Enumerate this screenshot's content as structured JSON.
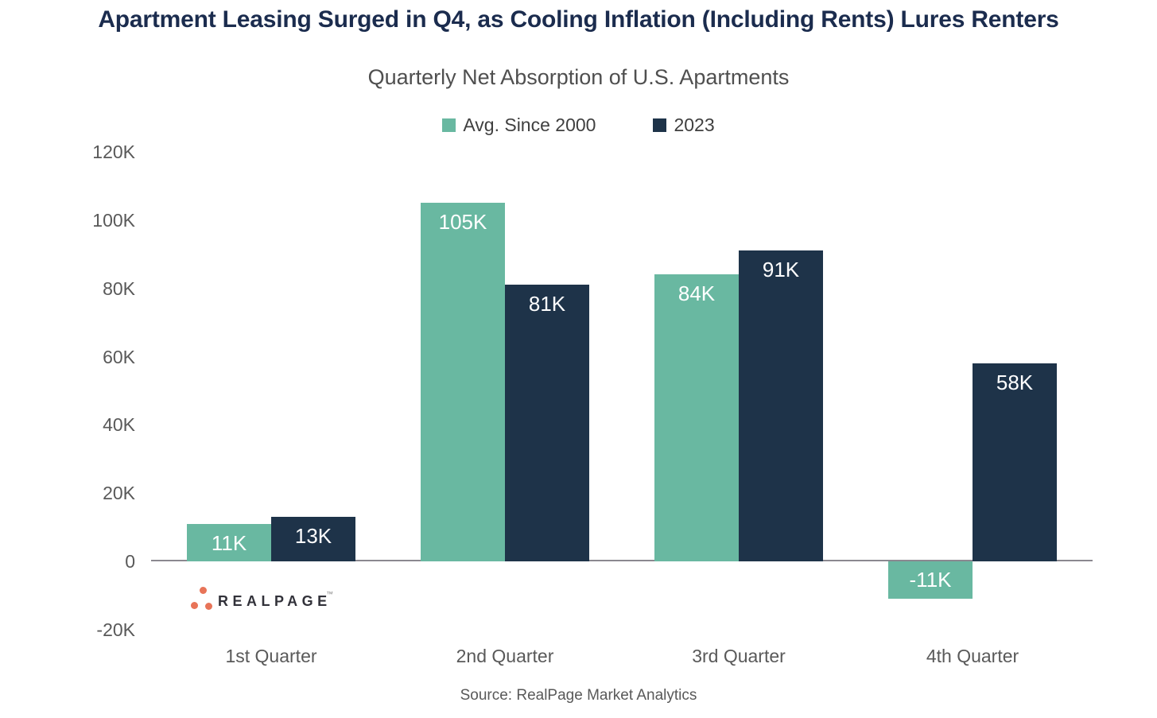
{
  "header": {
    "title": "Apartment Leasing Surged in Q4, as Cooling Inflation (Including Rents) Lures Renters",
    "subtitle": "Quarterly Net Absorption of U.S. Apartments"
  },
  "colors": {
    "teal": "#69b8a1",
    "navy": "#1e3349",
    "title_navy": "#1b2c4e",
    "gray_text": "#595959",
    "axis_line": "#8b8890",
    "logo_orange": "#e87458",
    "logo_text_color": "#32323a",
    "bar_label_white": "#ffffff"
  },
  "chart_data": {
    "type": "bar",
    "title": "Quarterly Net Absorption of U.S. Apartments",
    "categories": [
      "1st Quarter",
      "2nd Quarter",
      "3rd Quarter",
      "4th Quarter"
    ],
    "series": [
      {
        "name": "Avg. Since 2000",
        "color_key": "teal",
        "values": [
          11000,
          105000,
          84000,
          -11000
        ],
        "labels": [
          "11K",
          "105K",
          "84K",
          "-11K"
        ]
      },
      {
        "name": "2023",
        "color_key": "navy",
        "values": [
          13000,
          81000,
          91000,
          58000
        ],
        "labels": [
          "13K",
          "81K",
          "91K",
          "58K"
        ]
      }
    ],
    "y_axis": {
      "min": -20000,
      "max": 120000,
      "tick_step": 20000,
      "tick_labels": [
        "120K",
        "100K",
        "80K",
        "60K",
        "40K",
        "20K",
        "0",
        "-20K"
      ]
    },
    "legend_position": "top",
    "grid": false
  },
  "footer": {
    "source": "Source: RealPage Market Analytics",
    "logo_text": "REALPAGE",
    "logo_tm": "™"
  }
}
